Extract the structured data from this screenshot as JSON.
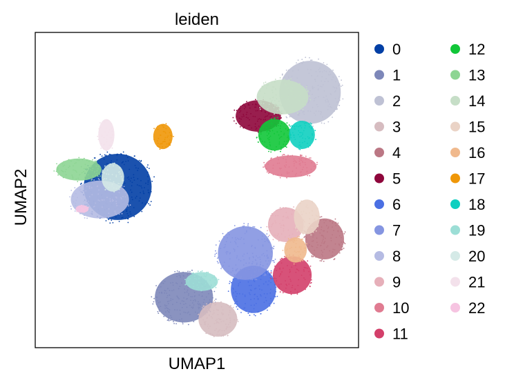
{
  "chart_data": {
    "type": "scatter",
    "title": "leiden",
    "xlabel": "UMAP1",
    "ylabel": "UMAP2",
    "grid": false,
    "legend_placement": "right",
    "legend_columns": 2,
    "xlim": [
      0,
      100
    ],
    "ylim": [
      0,
      100
    ],
    "series": [
      {
        "name": "0",
        "color": "#023fa5",
        "clusters": [
          {
            "x": 25.5,
            "y": 51.0,
            "rx": 10.5,
            "ry": 10.5,
            "n": 260
          }
        ]
      },
      {
        "name": "1",
        "color": "#7d87b9",
        "clusters": [
          {
            "x": 46.0,
            "y": 16.0,
            "rx": 9.0,
            "ry": 8.0,
            "n": 220
          }
        ]
      },
      {
        "name": "2",
        "color": "#bec1d4",
        "clusters": [
          {
            "x": 85.0,
            "y": 81.0,
            "rx": 9.5,
            "ry": 10.0,
            "n": 200
          }
        ]
      },
      {
        "name": "3",
        "color": "#d6bcc0",
        "clusters": [
          {
            "x": 56.5,
            "y": 9.0,
            "rx": 6.0,
            "ry": 5.5,
            "n": 110
          }
        ]
      },
      {
        "name": "4",
        "color": "#bb7784",
        "clusters": [
          {
            "x": 89.5,
            "y": 34.5,
            "rx": 6.0,
            "ry": 6.5,
            "n": 120
          }
        ]
      },
      {
        "name": "5",
        "color": "#8e063b",
        "clusters": [
          {
            "x": 69.0,
            "y": 73.5,
            "rx": 7.0,
            "ry": 5.0,
            "n": 130
          }
        ]
      },
      {
        "name": "6",
        "color": "#4a6fe3",
        "clusters": [
          {
            "x": 67.5,
            "y": 18.5,
            "rx": 7.0,
            "ry": 7.5,
            "n": 120
          }
        ]
      },
      {
        "name": "7",
        "color": "#8595e1",
        "clusters": [
          {
            "x": 65.0,
            "y": 30.0,
            "rx": 8.5,
            "ry": 8.5,
            "n": 170
          }
        ]
      },
      {
        "name": "8",
        "color": "#b5bbe3",
        "clusters": [
          {
            "x": 20.0,
            "y": 47.0,
            "rx": 9.0,
            "ry": 6.0,
            "n": 110
          }
        ]
      },
      {
        "name": "9",
        "color": "#e6afb9",
        "clusters": [
          {
            "x": 77.5,
            "y": 39.0,
            "rx": 5.5,
            "ry": 5.5,
            "n": 80
          }
        ]
      },
      {
        "name": "10",
        "color": "#e07b91",
        "clusters": [
          {
            "x": 79.0,
            "y": 57.5,
            "rx": 8.0,
            "ry": 3.5,
            "n": 90
          }
        ]
      },
      {
        "name": "11",
        "color": "#d33f6a",
        "clusters": [
          {
            "x": 79.5,
            "y": 23.0,
            "rx": 6.0,
            "ry": 6.0,
            "n": 80
          }
        ]
      },
      {
        "name": "12",
        "color": "#11c638",
        "clusters": [
          {
            "x": 74.0,
            "y": 67.5,
            "rx": 5.0,
            "ry": 5.0,
            "n": 80
          }
        ]
      },
      {
        "name": "13",
        "color": "#8dd593",
        "clusters": [
          {
            "x": 13.5,
            "y": 56.5,
            "rx": 7.0,
            "ry": 3.5,
            "n": 80
          }
        ]
      },
      {
        "name": "14",
        "color": "#c6dec7",
        "clusters": [
          {
            "x": 76.5,
            "y": 79.5,
            "rx": 8.0,
            "ry": 5.5,
            "n": 110
          }
        ]
      },
      {
        "name": "15",
        "color": "#ead3c6",
        "clusters": [
          {
            "x": 84.0,
            "y": 41.5,
            "rx": 4.0,
            "ry": 5.5,
            "n": 60
          }
        ]
      },
      {
        "name": "16",
        "color": "#f0b98d",
        "clusters": [
          {
            "x": 80.5,
            "y": 31.0,
            "rx": 3.5,
            "ry": 4.0,
            "n": 50
          }
        ]
      },
      {
        "name": "17",
        "color": "#ef9708",
        "clusters": [
          {
            "x": 39.5,
            "y": 67.0,
            "rx": 3.0,
            "ry": 4.0,
            "n": 50
          }
        ]
      },
      {
        "name": "18",
        "color": "#0fcfc0",
        "clusters": [
          {
            "x": 82.5,
            "y": 67.5,
            "rx": 4.0,
            "ry": 4.5,
            "n": 60
          }
        ]
      },
      {
        "name": "19",
        "color": "#9cded6",
        "clusters": [
          {
            "x": 51.5,
            "y": 21.0,
            "rx": 5.0,
            "ry": 3.0,
            "n": 50
          }
        ]
      },
      {
        "name": "20",
        "color": "#d5eae7",
        "clusters": [
          {
            "x": 24.0,
            "y": 54.0,
            "rx": 3.5,
            "ry": 4.5,
            "n": 40
          }
        ]
      },
      {
        "name": "21",
        "color": "#f3e1eb",
        "clusters": [
          {
            "x": 22.0,
            "y": 67.5,
            "rx": 2.5,
            "ry": 5.0,
            "n": 40
          }
        ]
      },
      {
        "name": "22",
        "color": "#f6c4e1",
        "clusters": [
          {
            "x": 14.5,
            "y": 44.0,
            "rx": 2.0,
            "ry": 1.2,
            "n": 15
          }
        ]
      }
    ]
  }
}
